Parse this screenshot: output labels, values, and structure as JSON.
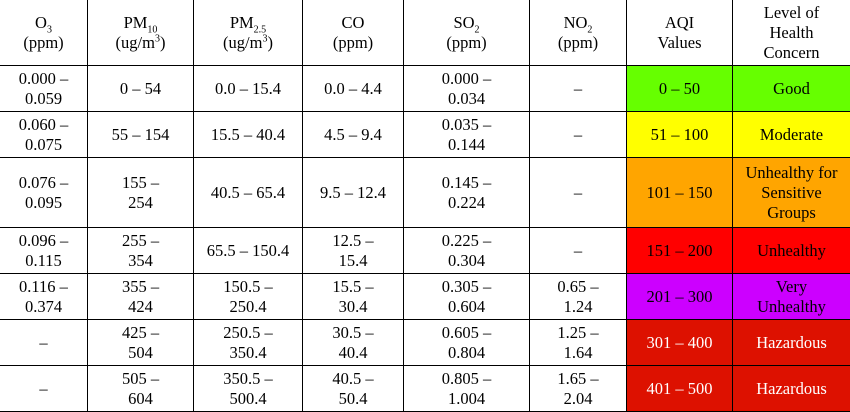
{
  "header": {
    "o3": {
      "name": "O",
      "sub": "3",
      "unit": "(ppm)"
    },
    "pm10": {
      "name": "PM",
      "sub": "10",
      "unit_pre": "(ug/m",
      "unit_sup": "3",
      "unit_post": ")"
    },
    "pm25": {
      "name": "PM",
      "sub": "2.5",
      "unit_pre": "(ug/m",
      "unit_sup": "3",
      "unit_post": ")"
    },
    "co": {
      "name": "CO",
      "unit": "(ppm)"
    },
    "so2": {
      "name": "SO",
      "sub": "2",
      "unit": "(ppm)"
    },
    "no2": {
      "name": "NO",
      "sub": "2",
      "unit": "(ppm)"
    },
    "aqi": {
      "line1": "AQI",
      "line2": "Values"
    },
    "level": {
      "line1": "Level of",
      "line2": "Health",
      "line3": "Concern"
    }
  },
  "rows": [
    {
      "o3": [
        "0.000 –",
        "0.059"
      ],
      "pm10": [
        "0 – 54"
      ],
      "pm25": [
        "0.0 – 15.4"
      ],
      "co": [
        "0.0 – 4.4"
      ],
      "so2": [
        "0.000 –",
        "0.034"
      ],
      "no2": [
        "–"
      ],
      "aqi": "0 – 50",
      "level": [
        "Good"
      ],
      "aqi_color": "#66ff00",
      "level_color": "#66ff00",
      "text_color": "#000000"
    },
    {
      "o3": [
        "0.060 –",
        "0.075"
      ],
      "pm10": [
        "55 – 154"
      ],
      "pm25": [
        "15.5 – 40.4"
      ],
      "co": [
        "4.5 – 9.4"
      ],
      "so2": [
        "0.035 –",
        "0.144"
      ],
      "no2": [
        "–"
      ],
      "aqi": "51 – 100",
      "level": [
        "Moderate"
      ],
      "aqi_color": "#ffff00",
      "level_color": "#ffff00",
      "text_color": "#000000"
    },
    {
      "o3": [
        "0.076 –",
        "0.095"
      ],
      "pm10": [
        "155 –",
        "254"
      ],
      "pm25": [
        "40.5 – 65.4"
      ],
      "co": [
        "9.5 – 12.4"
      ],
      "so2": [
        "0.145 –",
        "0.224"
      ],
      "no2": [
        "–"
      ],
      "aqi": "101 – 150",
      "level": [
        "Unhealthy for",
        "Sensitive",
        "Groups"
      ],
      "aqi_color": "#ffa500",
      "level_color": "#ffa500",
      "text_color": "#000000"
    },
    {
      "o3": [
        "0.096 –",
        "0.115"
      ],
      "pm10": [
        "255 –",
        "354"
      ],
      "pm25": [
        "65.5 – 150.4"
      ],
      "co": [
        "12.5 –",
        "15.4"
      ],
      "so2": [
        "0.225 –",
        "0.304"
      ],
      "no2": [
        "–"
      ],
      "aqi": "151 – 200",
      "level": [
        "Unhealthy"
      ],
      "aqi_color": "#ff0000",
      "level_color": "#ff0000",
      "text_color": "#000000"
    },
    {
      "o3": [
        "0.116 –",
        "0.374"
      ],
      "pm10": [
        "355 –",
        "424"
      ],
      "pm25": [
        "150.5 –",
        "250.4"
      ],
      "co": [
        "15.5 –",
        "30.4"
      ],
      "so2": [
        "0.305 –",
        "0.604"
      ],
      "no2": [
        "0.65 –",
        "1.24"
      ],
      "aqi": "201 – 300",
      "level": [
        "Very",
        "Unhealthy"
      ],
      "aqi_color": "#cc00ff",
      "level_color": "#cc00ff",
      "text_color": "#000000"
    },
    {
      "o3": [
        "–"
      ],
      "pm10": [
        "425 –",
        "504"
      ],
      "pm25": [
        "250.5 –",
        "350.4"
      ],
      "co": [
        "30.5 –",
        "40.4"
      ],
      "so2": [
        "0.605 –",
        "0.804"
      ],
      "no2": [
        "1.25 –",
        "1.64"
      ],
      "aqi": "301 – 400",
      "level": [
        "Hazardous"
      ],
      "aqi_color": "#dd1100",
      "level_color": "#dd1100",
      "text_color": "#ffffff"
    },
    {
      "o3": [
        "–"
      ],
      "pm10": [
        "505 –",
        "604"
      ],
      "pm25": [
        "350.5 –",
        "500.4"
      ],
      "co": [
        "40.5 –",
        "50.4"
      ],
      "so2": [
        "0.805 –",
        "1.004"
      ],
      "no2": [
        "1.65 –",
        "2.04"
      ],
      "aqi": "401 – 500",
      "level": [
        "Hazardous"
      ],
      "aqi_color": "#dd1100",
      "level_color": "#dd1100",
      "text_color": "#ffffff"
    }
  ]
}
